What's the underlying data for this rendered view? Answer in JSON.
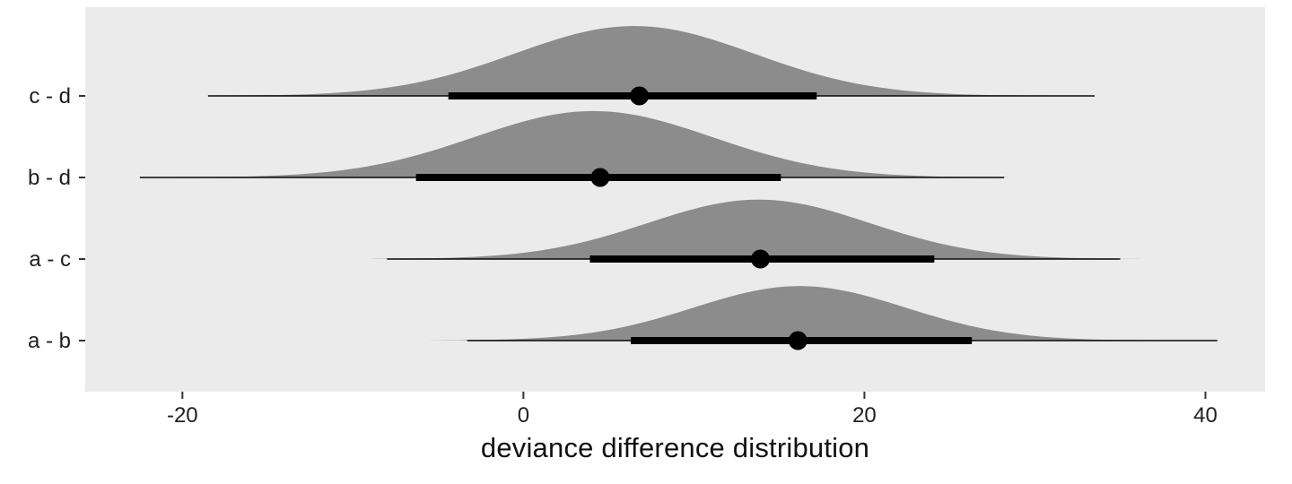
{
  "chart_data": {
    "type": "area",
    "subtype": "halfeye-interval-plot",
    "title": "",
    "xlabel": "deviance difference distribution",
    "ylabel": "",
    "xlim": [
      -25.7,
      43.5
    ],
    "xticks": [
      {
        "value": -20,
        "label": "-20"
      },
      {
        "value": 0,
        "label": "0"
      },
      {
        "value": 20,
        "label": "20"
      },
      {
        "value": 40,
        "label": "40"
      }
    ],
    "grid": "off",
    "legend": "none",
    "row_order_note": "rows listed top to bottom as rendered",
    "rows": [
      {
        "label": "c - d",
        "mean": 6.5,
        "sd": 7.0,
        "peak_scale": 1.0,
        "point": 6.8,
        "interval_thick": [
          -4.4,
          17.2
        ],
        "interval_thin": [
          -18.5,
          33.5
        ]
      },
      {
        "label": "b - d",
        "mean": 4.1,
        "sd": 7.0,
        "peak_scale": 0.95,
        "point": 4.5,
        "interval_thick": [
          -6.3,
          15.1
        ],
        "interval_thin": [
          -22.5,
          28.2
        ]
      },
      {
        "label": "a - c",
        "mean": 13.8,
        "sd": 6.5,
        "peak_scale": 0.85,
        "point": 13.9,
        "interval_thick": [
          3.9,
          24.1
        ],
        "interval_thin": [
          -8.0,
          35.0
        ]
      },
      {
        "label": "a - b",
        "mean": 16.2,
        "sd": 6.2,
        "peak_scale": 0.78,
        "point": 16.1,
        "interval_thick": [
          6.3,
          26.3
        ],
        "interval_thin": [
          -3.3,
          40.7
        ]
      }
    ],
    "colors": {
      "background": "#ffffff",
      "panel_bg": "#ebebeb",
      "density_fill": "#8c8c8c",
      "interval": "#000000",
      "axis_text": "#1f1f1f",
      "tick": "#333333"
    }
  }
}
